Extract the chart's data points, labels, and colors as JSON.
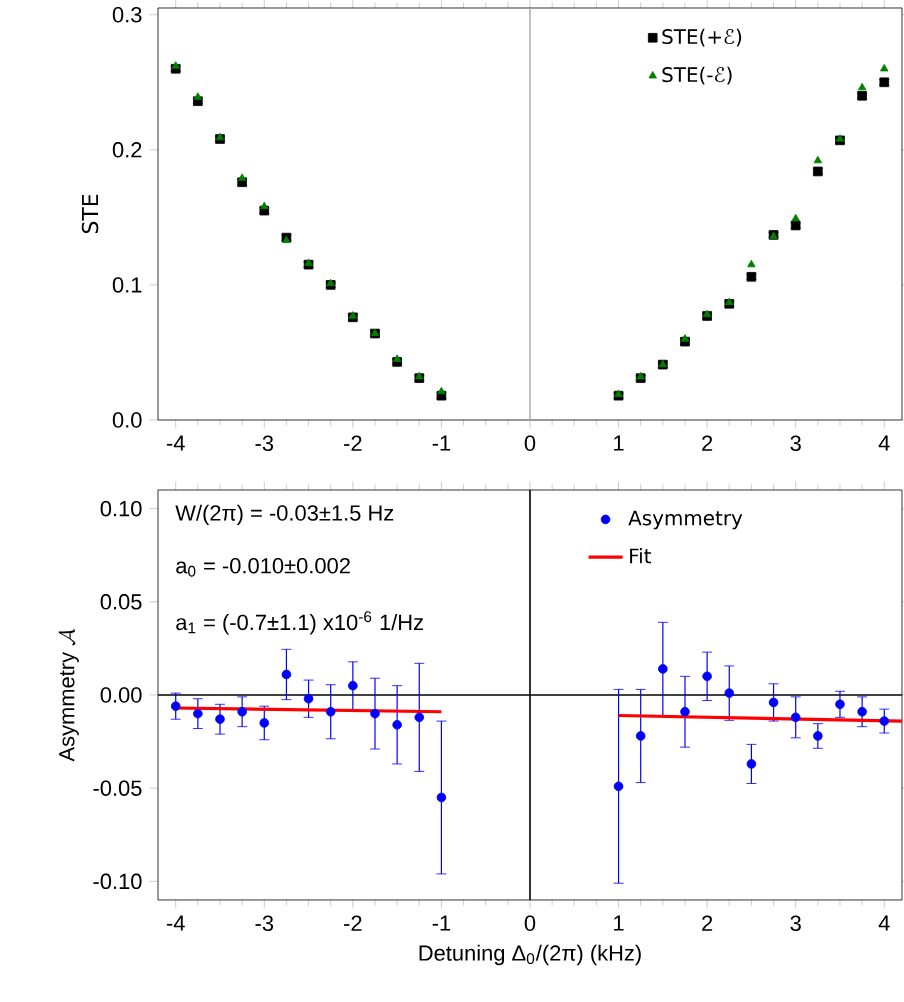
{
  "chart_data": [
    {
      "type": "scatter",
      "ylabel": "STE",
      "xlim": [
        -4.2,
        4.2
      ],
      "ylim": [
        0,
        0.305
      ],
      "xticks": [
        -4,
        -3,
        -2,
        -1,
        0,
        1,
        2,
        3,
        4
      ],
      "yticks": [
        {
          "value": 0,
          "label": "0.0"
        },
        0.1,
        0.2,
        0.3
      ],
      "legend": "top right",
      "ref_lines": [
        {
          "axis": "x",
          "value": 0,
          "color": "#b0b0b0"
        }
      ],
      "series": [
        {
          "name": "STE(+ℰ)",
          "color": "#000000",
          "marker": "square",
          "x": [
            -4,
            -3.75,
            -3.5,
            -3.25,
            -3,
            -2.75,
            -2.5,
            -2.25,
            -2,
            -1.75,
            -1.5,
            -1.25,
            -1,
            1,
            1.25,
            1.5,
            1.75,
            2,
            2.25,
            2.5,
            2.75,
            3,
            3.25,
            3.5,
            3.75,
            4
          ],
          "values": [
            0.26,
            0.236,
            0.208,
            0.176,
            0.155,
            0.135,
            0.115,
            0.1,
            0.076,
            0.064,
            0.043,
            0.031,
            0.018,
            0.018,
            0.031,
            0.041,
            0.058,
            0.077,
            0.086,
            0.106,
            0.137,
            0.144,
            0.184,
            0.207,
            0.24,
            0.25
          ],
          "errors": [
            0.002,
            0.002,
            0.002,
            0.002,
            0.002,
            0.002,
            0.002,
            0.002,
            0.002,
            0.002,
            0.002,
            0.002,
            0.002,
            0.002,
            0.002,
            0.002,
            0.002,
            0.002,
            0.002,
            0.002,
            0.002,
            0.002,
            0.002,
            0.002,
            0.002,
            0.002
          ]
        },
        {
          "name": "STE(-ℰ)",
          "color": "#008000",
          "marker": "triangle",
          "x": [
            -4,
            -3.75,
            -3.5,
            -3.25,
            -3,
            -2.75,
            -2.5,
            -2.25,
            -2,
            -1.75,
            -1.5,
            -1.25,
            -1,
            1,
            1.25,
            1.5,
            1.75,
            2,
            2.25,
            2.5,
            2.75,
            3,
            3.25,
            3.5,
            3.75,
            4
          ],
          "values": [
            0.262,
            0.239,
            0.209,
            0.179,
            0.158,
            0.133,
            0.116,
            0.101,
            0.077,
            0.064,
            0.045,
            0.032,
            0.021,
            0.019,
            0.032,
            0.041,
            0.06,
            0.078,
            0.087,
            0.115,
            0.136,
            0.149,
            0.192,
            0.208,
            0.246,
            0.26
          ]
        }
      ]
    },
    {
      "type": "scatter",
      "xlabel": "Detuning Δ$_{0}$/(2π) (kHz)",
      "ylabel": "\\mbox{Asymmetry }\\mathcal{A}",
      "xlim": [
        -4.2,
        4.2
      ],
      "ylim": [
        -0.11,
        0.11
      ],
      "xticks": [
        -4,
        -3,
        -2,
        -1,
        0,
        1,
        2,
        3,
        4
      ],
      "yticks": [
        {
          "value": -0.1,
          "label": "-0.10"
        },
        {
          "value": -0.05,
          "label": "-0.05"
        },
        {
          "value": 0,
          "label": "0.00"
        },
        {
          "value": 0.05,
          "label": "0.05"
        },
        {
          "value": 0.1,
          "label": "0.10"
        }
      ],
      "legend": "top right",
      "annotations": [
        "W/(2π) = -0.03±1.5 Hz",
        "a$_{0}$ =  -0.010±0.002",
        "a$_{1}$ =  (-0.7±1.1) x10$^{-6}$ 1/Hz"
      ],
      "ref_lines": [
        {
          "axis": "x",
          "value": 0,
          "color": "#000000"
        },
        {
          "axis": "y",
          "value": 0,
          "color": "#000000"
        }
      ],
      "series": [
        {
          "name": "Asymmetry",
          "color": "#0000ff",
          "marker": "circle",
          "x": [
            -4,
            -3.75,
            -3.5,
            -3.25,
            -3,
            -2.75,
            -2.5,
            -2.25,
            -2,
            -1.75,
            -1.5,
            -1.25,
            -1,
            1,
            1.25,
            1.5,
            1.75,
            2,
            2.25,
            2.5,
            2.75,
            3,
            3.25,
            3.5,
            3.75,
            4
          ],
          "values": [
            -0.006,
            -0.01,
            -0.013,
            -0.009,
            -0.015,
            0.011,
            -0.002,
            -0.009,
            0.005,
            -0.01,
            -0.016,
            -0.012,
            -0.055,
            -0.049,
            -0.022,
            0.014,
            -0.009,
            0.01,
            0.001,
            -0.037,
            -0.004,
            -0.012,
            -0.022,
            -0.005,
            -0.009,
            -0.014
          ],
          "errors": [
            0.007,
            0.008,
            0.008,
            0.008,
            0.009,
            0.0135,
            0.01,
            0.0145,
            0.0128,
            0.019,
            0.021,
            0.029,
            0.041,
            0.052,
            0.025,
            0.025,
            0.019,
            0.013,
            0.0146,
            0.0105,
            0.01,
            0.011,
            0.0066,
            0.007,
            0.008,
            0.0064
          ]
        },
        {
          "name": "Fit",
          "type": "line",
          "color": "#ff0000",
          "marker": "none",
          "x": [
            -4,
            -1,
            0,
            1,
            4.2
          ],
          "values": [
            -0.007,
            -0.009,
            null,
            -0.011,
            -0.014
          ]
        }
      ]
    }
  ]
}
